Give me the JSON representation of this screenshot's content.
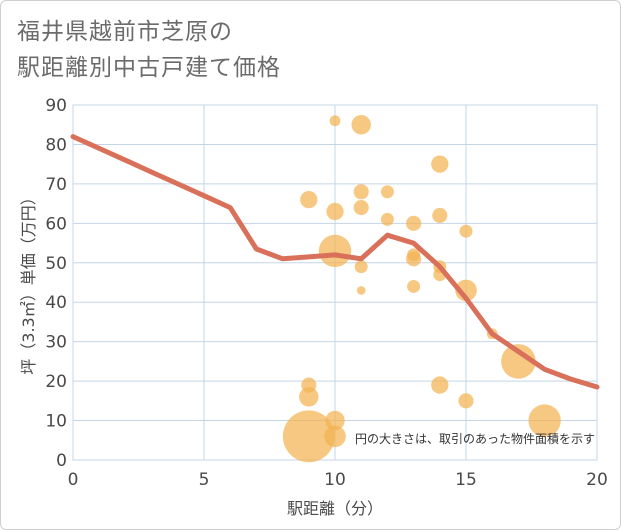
{
  "title_lines": [
    "福井県越前市芝原の",
    "駅距離別中古戸建て価格"
  ],
  "chart_data": {
    "type": "scatter",
    "title": "福井県越前市芝原の駅距離別中古戸建て価格",
    "xlabel": "駅距離（分）",
    "ylabel": "坪（3.3㎡）単価（万円）",
    "xlim": [
      0,
      20
    ],
    "ylim": [
      0,
      90
    ],
    "x_ticks": [
      0,
      5,
      10,
      15,
      20
    ],
    "y_ticks": [
      0,
      10,
      20,
      30,
      40,
      50,
      60,
      70,
      80,
      90
    ],
    "grid": true,
    "note": "円の大きさは、取引のあった物件面積を示す",
    "colors": {
      "bubble": "#f2b352",
      "line": "#d9705a",
      "grid": "#c5d5e8"
    },
    "bubbles": [
      {
        "x": 9,
        "y": 6,
        "size": 24
      },
      {
        "x": 9,
        "y": 16,
        "size": 9
      },
      {
        "x": 9,
        "y": 19,
        "size": 7
      },
      {
        "x": 9,
        "y": 66,
        "size": 8
      },
      {
        "x": 10,
        "y": 86,
        "size": 5
      },
      {
        "x": 10,
        "y": 63,
        "size": 8
      },
      {
        "x": 10,
        "y": 53,
        "size": 15
      },
      {
        "x": 10,
        "y": 10,
        "size": 9
      },
      {
        "x": 10,
        "y": 6,
        "size": 10
      },
      {
        "x": 11,
        "y": 85,
        "size": 9
      },
      {
        "x": 11,
        "y": 68,
        "size": 7
      },
      {
        "x": 11,
        "y": 64,
        "size": 7
      },
      {
        "x": 11,
        "y": 49,
        "size": 6
      },
      {
        "x": 11,
        "y": 43,
        "size": 4
      },
      {
        "x": 12,
        "y": 68,
        "size": 6
      },
      {
        "x": 12,
        "y": 61,
        "size": 6
      },
      {
        "x": 13,
        "y": 60,
        "size": 7
      },
      {
        "x": 13,
        "y": 52,
        "size": 6
      },
      {
        "x": 13,
        "y": 51,
        "size": 7
      },
      {
        "x": 13,
        "y": 44,
        "size": 6
      },
      {
        "x": 14,
        "y": 75,
        "size": 8
      },
      {
        "x": 14,
        "y": 62,
        "size": 7
      },
      {
        "x": 14,
        "y": 49,
        "size": 6
      },
      {
        "x": 14,
        "y": 47,
        "size": 6
      },
      {
        "x": 14,
        "y": 19,
        "size": 8
      },
      {
        "x": 15,
        "y": 58,
        "size": 6
      },
      {
        "x": 15,
        "y": 43,
        "size": 10
      },
      {
        "x": 15,
        "y": 15,
        "size": 7
      },
      {
        "x": 16,
        "y": 32,
        "size": 5
      },
      {
        "x": 17,
        "y": 25,
        "size": 16
      },
      {
        "x": 18,
        "y": 10,
        "size": 15
      }
    ],
    "trend": {
      "x": [
        0,
        1,
        2,
        3,
        4,
        5,
        6,
        7,
        8,
        9,
        10,
        11,
        12,
        13,
        14,
        15,
        16,
        17,
        18,
        19,
        20
      ],
      "y": [
        82,
        79,
        76,
        73,
        70,
        67,
        64,
        53.5,
        51,
        51.5,
        52,
        51,
        57,
        55,
        49,
        41,
        32,
        27.5,
        23,
        20.5,
        18.5
      ]
    }
  }
}
